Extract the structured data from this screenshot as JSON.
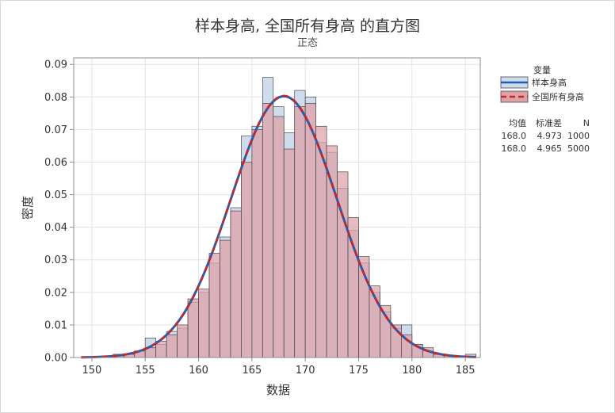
{
  "chart_data": {
    "type": "bar",
    "title": "样本身高, 全国所有身高 的直方图",
    "subtitle": "正态",
    "xlabel": "数据",
    "ylabel": "密度",
    "xlim": [
      148.3,
      186.4
    ],
    "ylim": [
      0,
      0.092
    ],
    "xticks": [
      "150",
      "155",
      "160",
      "165",
      "170",
      "175",
      "180",
      "185"
    ],
    "yticks": [
      "0.00",
      "0.01",
      "0.02",
      "0.03",
      "0.04",
      "0.05",
      "0.06",
      "0.07",
      "0.08",
      "0.09"
    ],
    "grid": true,
    "bin_edges": [
      148,
      149,
      150,
      151,
      152,
      153,
      154,
      155,
      156,
      157,
      158,
      159,
      160,
      161,
      162,
      163,
      164,
      165,
      166,
      167,
      168,
      169,
      170,
      171,
      172,
      173,
      174,
      175,
      176,
      177,
      178,
      179,
      180,
      181,
      182,
      183,
      184,
      185,
      186
    ],
    "series": [
      {
        "name": "样本身高",
        "fill": "#cfdcec",
        "values": [
          0,
          0,
          0,
          0,
          0.001,
          0.001,
          0.002,
          0.006,
          0.004,
          0.008,
          0.009,
          0.017,
          0.02,
          0.029,
          0.037,
          0.046,
          0.068,
          0.071,
          0.086,
          0.077,
          0.069,
          0.082,
          0.08,
          0.066,
          0.063,
          0.052,
          0.039,
          0.029,
          0.02,
          0.014,
          0.009,
          0.01,
          0.004,
          0.002,
          0.001,
          0,
          0,
          0
        ],
        "mean": 168.0,
        "stdev": 4.973,
        "n": 1000,
        "line_color": "#1f5fb4",
        "line_style": "solid"
      },
      {
        "name": "全国所有身高",
        "fill": "#dea1a6",
        "values": [
          0,
          0,
          0,
          0,
          0.0005,
          0.001,
          0.002,
          0.003,
          0.005,
          0.007,
          0.01,
          0.018,
          0.021,
          0.032,
          0.036,
          0.045,
          0.06,
          0.07,
          0.078,
          0.074,
          0.064,
          0.077,
          0.078,
          0.071,
          0.065,
          0.057,
          0.043,
          0.031,
          0.022,
          0.016,
          0.01,
          0.007,
          0.004,
          0.003,
          0.001,
          0.0005,
          0.0005,
          0.001
        ],
        "mean": 168.0,
        "stdev": 4.965,
        "n": 5000,
        "line_color": "#c0282d",
        "line_style": "dashed"
      }
    ],
    "legend": {
      "title": "变量",
      "position": "right",
      "stats_headers": [
        "均值",
        "标准差",
        "N"
      ],
      "stats_rows": [
        [
          "168.0",
          "4.973",
          "1000"
        ],
        [
          "168.0",
          "4.965",
          "5000"
        ]
      ]
    },
    "colors": {
      "grid": "#e3e3e3",
      "axis": "#8c8c8c",
      "bar_edge": "#4a4a4a",
      "text": "#333333"
    }
  }
}
